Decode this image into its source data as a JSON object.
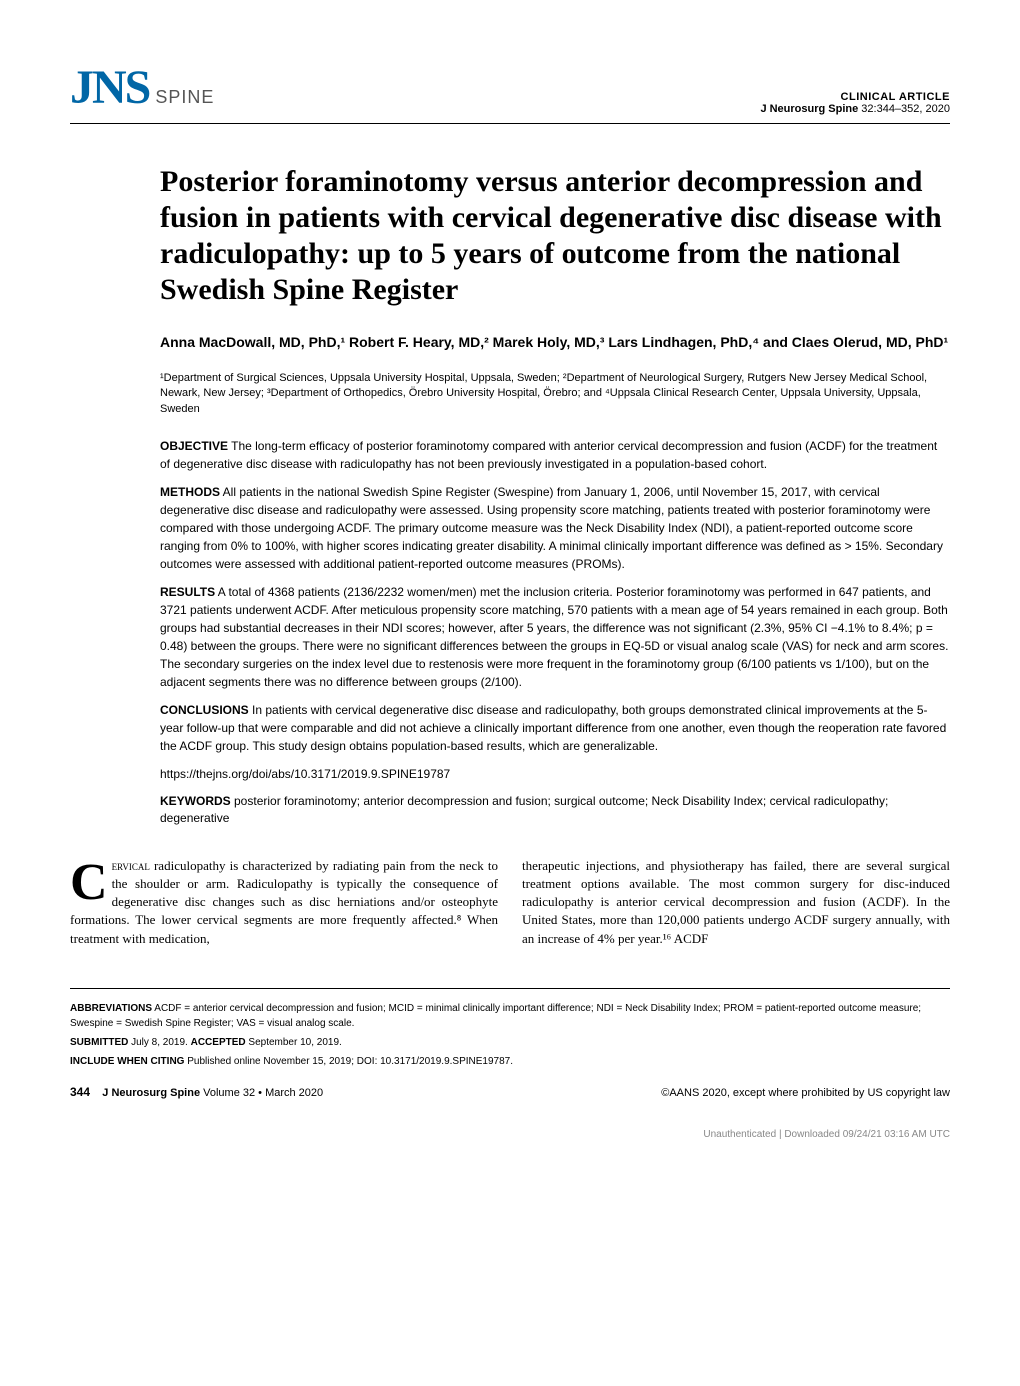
{
  "header": {
    "logo_main": "JNS",
    "logo_sub": "SPINE",
    "article_type": "CLINICAL ARTICLE",
    "citation_journal": "J Neurosurg Spine",
    "citation_vol": " 32:344–352, 2020"
  },
  "title": "Posterior foraminotomy versus anterior decompression and fusion in patients with cervical degenerative disc disease with radiculopathy: up to 5 years of outcome from the national Swedish Spine Register",
  "authors": "Anna MacDowall, MD, PhD,¹ Robert F. Heary, MD,² Marek Holy, MD,³ Lars Lindhagen, PhD,⁴ and Claes Olerud, MD, PhD¹",
  "affiliations": "¹Department of Surgical Sciences, Uppsala University Hospital, Uppsala, Sweden; ²Department of Neurological Surgery, Rutgers New Jersey Medical School, Newark, New Jersey; ³Department of Orthopedics, Örebro University Hospital, Örebro; and ⁴Uppsala Clinical Research Center, Uppsala University, Uppsala, Sweden",
  "abstract": {
    "objective_label": "OBJECTIVE",
    "objective": " The long-term efficacy of posterior foraminotomy compared with anterior cervical decompression and fusion (ACDF) for the treatment of degenerative disc disease with radiculopathy has not been previously investigated in a population-based cohort.",
    "methods_label": "METHODS",
    "methods": " All patients in the national Swedish Spine Register (Swespine) from January 1, 2006, until November 15, 2017, with cervical degenerative disc disease and radiculopathy were assessed. Using propensity score matching, patients treated with posterior foraminotomy were compared with those undergoing ACDF. The primary outcome measure was the Neck Disability Index (NDI), a patient-reported outcome score ranging from 0% to 100%, with higher scores indicating greater disability. A minimal clinically important difference was defined as > 15%. Secondary outcomes were assessed with additional patient-reported outcome measures (PROMs).",
    "results_label": "RESULTS",
    "results": " A total of 4368 patients (2136/2232 women/men) met the inclusion criteria. Posterior foraminotomy was performed in 647 patients, and 3721 patients underwent ACDF. After meticulous propensity score matching, 570 patients with a mean age of 54 years remained in each group. Both groups had substantial decreases in their NDI scores; however, after 5 years, the difference was not significant (2.3%, 95% CI −4.1% to 8.4%; p = 0.48) between the groups. There were no significant differences between the groups in EQ-5D or visual analog scale (VAS) for neck and arm scores. The secondary surgeries on the index level due to restenosis were more frequent in the foraminotomy group (6/100 patients vs 1/100), but on the adjacent segments there was no difference between groups (2/100).",
    "conclusions_label": "CONCLUSIONS",
    "conclusions": " In patients with cervical degenerative disc disease and radiculopathy, both groups demonstrated clinical improvements at the 5-year follow-up that were comparable and did not achieve a clinically important difference from one another, even though the reoperation rate favored the ACDF group. This study design obtains population-based results, which are generalizable.",
    "doi": "https://thejns.org/doi/abs/10.3171/2019.9.SPINE19787",
    "keywords_label": "KEYWORDS",
    "keywords": " posterior foraminotomy; anterior decompression and fusion; surgical outcome; Neck Disability Index; cervical radiculopathy; degenerative"
  },
  "body": {
    "dropcap": "C",
    "col1_smallcaps": "ervical",
    "col1": " radiculopathy is characterized by radiating pain from the neck to the shoulder or arm. Radiculopathy is typically the consequence of degenerative disc changes such as disc herniations and/or osteophyte formations. The lower cervical segments are more frequently affected.⁸ When treatment with medication,",
    "col2": "therapeutic injections, and physiotherapy has failed, there are several surgical treatment options available. The most common surgery for disc-induced radiculopathy is anterior cervical decompression and fusion (ACDF). In the United States, more than 120,000 patients undergo ACDF surgery annually, with an increase of 4% per year.¹⁶ ACDF"
  },
  "footer": {
    "abbrev_label": "ABBREVIATIONS",
    "abbrev": " ACDF = anterior cervical decompression and fusion; MCID = minimal clinically important difference; NDI = Neck Disability Index; PROM = patient-reported outcome measure; Swespine = Swedish Spine Register; VAS = visual analog scale.",
    "submitted_label": "SUBMITTED",
    "submitted": " July 8, 2019. ",
    "accepted_label": "ACCEPTED",
    "accepted": " September 10, 2019.",
    "citing_label": "INCLUDE WHEN CITING",
    "citing": " Published online November 15, 2019; DOI: 10.3171/2019.9.SPINE19787.",
    "page_num": "344",
    "journal": "J Neurosurg Spine",
    "volume": " Volume 32 • March 2020",
    "copyright": "©AANS 2020, except where prohibited by US copyright law",
    "download_note": "Unauthenticated | Downloaded 09/24/21 03:16 AM UTC"
  },
  "colors": {
    "logo_blue": "#0066a6",
    "logo_gray": "#555555",
    "text": "#000000",
    "note_gray": "#888888"
  }
}
